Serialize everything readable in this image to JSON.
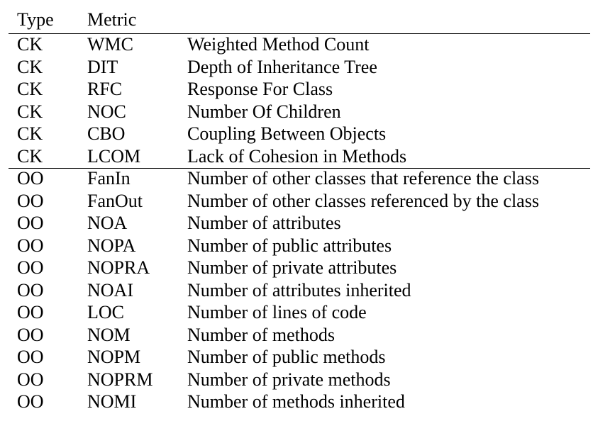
{
  "table": {
    "headers": [
      "Type",
      "Metric",
      ""
    ],
    "rows": [
      {
        "type": "CK",
        "metric": "WMC",
        "description": "Weighted Method Count"
      },
      {
        "type": "CK",
        "metric": "DIT",
        "description": "Depth of Inheritance Tree"
      },
      {
        "type": "CK",
        "metric": "RFC",
        "description": "Response For Class"
      },
      {
        "type": "CK",
        "metric": "NOC",
        "description": "Number Of Children"
      },
      {
        "type": "CK",
        "metric": "CBO",
        "description": "Coupling Between Objects"
      },
      {
        "type": "CK",
        "metric": "LCOM",
        "description": "Lack of Cohesion in Methods"
      },
      {
        "type": "OO",
        "metric": "FanIn",
        "description": "Number of other classes that reference the class"
      },
      {
        "type": "OO",
        "metric": "FanOut",
        "description": "Number of other classes referenced by the class"
      },
      {
        "type": "OO",
        "metric": "NOA",
        "description": "Number of attributes"
      },
      {
        "type": "OO",
        "metric": "NOPA",
        "description": "Number of public attributes"
      },
      {
        "type": "OO",
        "metric": "NOPRA",
        "description": "Number of private attributes"
      },
      {
        "type": "OO",
        "metric": "NOAI",
        "description": "Number of attributes inherited"
      },
      {
        "type": "OO",
        "metric": "LOC",
        "description": "Number of lines of code"
      },
      {
        "type": "OO",
        "metric": "NOM",
        "description": "Number of methods"
      },
      {
        "type": "OO",
        "metric": "NOPM",
        "description": "Number of public methods"
      },
      {
        "type": "OO",
        "metric": "NOPRM",
        "description": "Number of private methods"
      },
      {
        "type": "OO",
        "metric": "NOMI",
        "description": "Number of methods inherited"
      }
    ]
  }
}
